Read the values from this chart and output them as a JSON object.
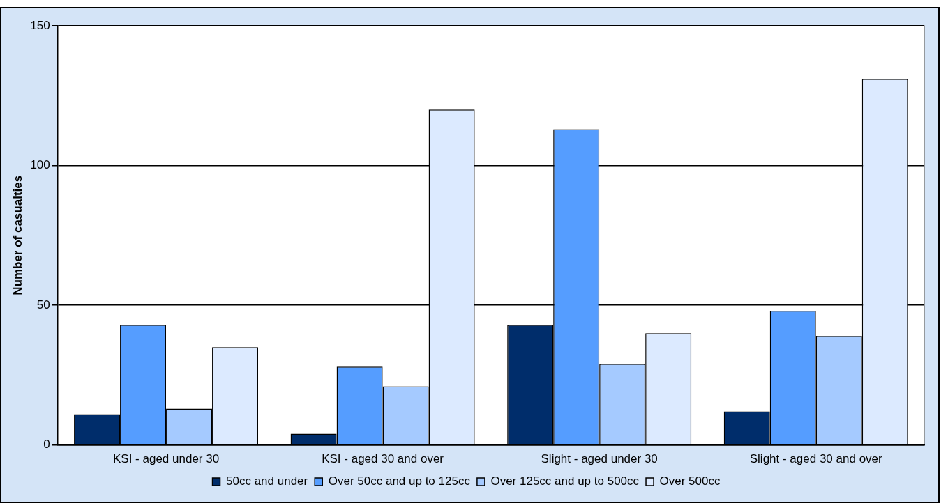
{
  "chart_data": {
    "type": "bar",
    "ylabel": "Number of casualties",
    "categories": [
      "KSI - aged under 30",
      "KSI - aged 30 and over",
      "Slight - aged under 30",
      "Slight - aged 30 and over"
    ],
    "series": [
      {
        "name": "50cc and under",
        "color": "#002d6b",
        "values": [
          11,
          4,
          43,
          12
        ]
      },
      {
        "name": "Over 50cc and up to 125cc",
        "color": "#559dff",
        "values": [
          43,
          28,
          113,
          48
        ]
      },
      {
        "name": "Over 125cc and up to 500cc",
        "color": "#a5caff",
        "values": [
          13,
          21,
          29,
          39
        ]
      },
      {
        "name": "Over 500cc",
        "color": "#dceaff",
        "values": [
          35,
          120,
          40,
          131
        ]
      }
    ],
    "ylim": [
      0,
      150
    ],
    "yticks": [
      0,
      50,
      100,
      150
    ],
    "grid": "y",
    "legend": "bottom"
  }
}
